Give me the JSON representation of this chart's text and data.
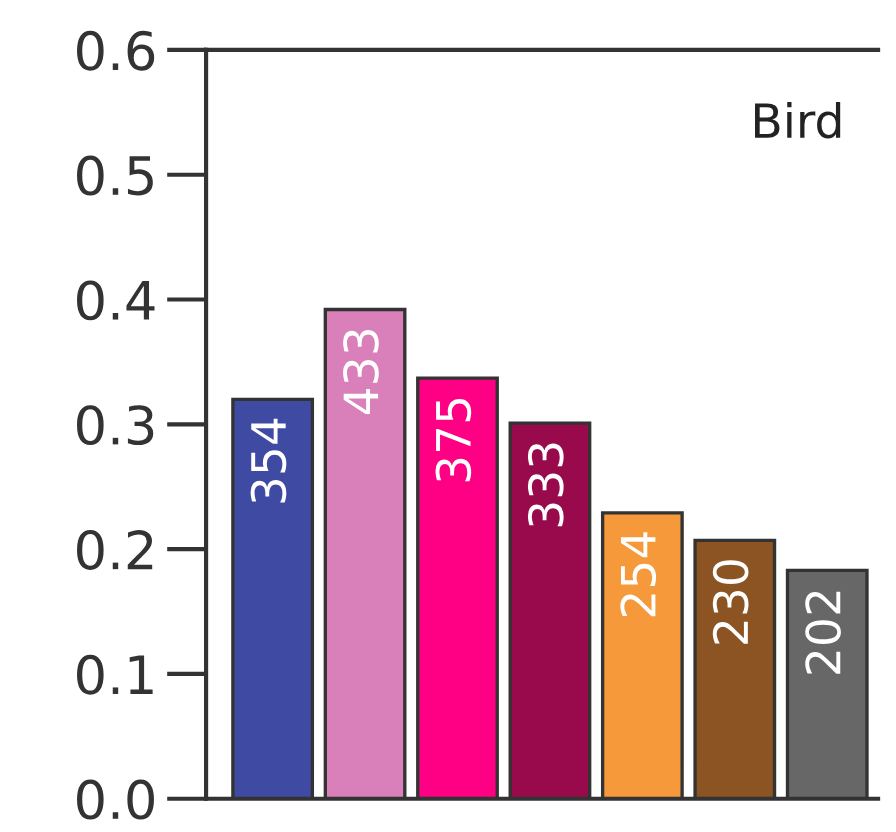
{
  "chart_data": {
    "type": "bar",
    "categories": [
      null,
      null,
      null,
      null,
      null,
      null,
      null
    ],
    "values": [
      0.32,
      0.392,
      0.337,
      0.301,
      0.229,
      0.207,
      0.183
    ],
    "colors": [
      "#3f4aa3",
      "#d97fb9",
      "#ff0084",
      "#990a4d",
      "#f6993a",
      "#8c5423",
      "#676767"
    ],
    "ylim": [
      0,
      0.6
    ],
    "yticks": [
      {
        "value": 0,
        "label": "0.0"
      },
      0.1,
      0.2,
      0.3,
      0.4,
      0.5,
      0.6
    ],
    "tick_labels": "y",
    "annotations": [
      "Bird",
      {
        "text": "354",
        "y": 0.32
      },
      {
        "text": "433",
        "y": 0.392
      },
      {
        "text": "375",
        "y": 0.337
      },
      {
        "text": "333",
        "y": 0.301
      },
      {
        "text": "254",
        "y": 0.229
      },
      {
        "text": "230",
        "y": 0.207
      },
      {
        "text": "202",
        "y": 0.183
      }
    ]
  }
}
